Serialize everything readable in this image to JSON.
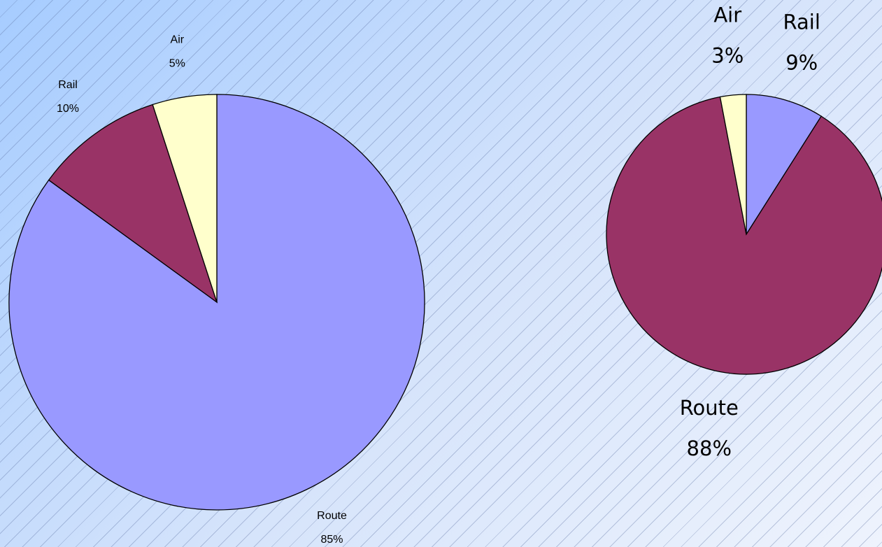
{
  "chart_data": [
    {
      "type": "pie",
      "categories": [
        "Route",
        "Rail",
        "Air"
      ],
      "values": [
        85,
        10,
        5
      ],
      "value_labels": [
        "85%",
        "10%",
        "5%"
      ],
      "colors": [
        "#9999ff",
        "#993366",
        "#ffffcc"
      ]
    },
    {
      "type": "pie",
      "categories": [
        "Rail",
        "Route",
        "Air"
      ],
      "values": [
        9,
        88,
        3
      ],
      "value_labels": [
        "9%",
        "88%",
        "3%"
      ],
      "colors": [
        "#9999ff",
        "#993366",
        "#ffffcc"
      ]
    }
  ]
}
